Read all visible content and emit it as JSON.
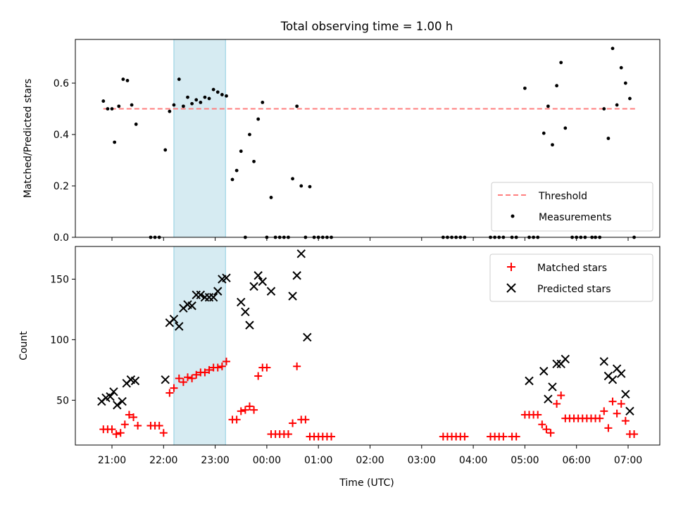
{
  "chart_data": [
    {
      "type": "scatter",
      "title": "Total observing time = 1.00 h",
      "xlabel": "",
      "ylabel": "Matched/Predicted stars",
      "x_ticks": [
        "21:00",
        "22:00",
        "23:00",
        "00:00",
        "01:00",
        "02:00",
        "03:00",
        "04:00",
        "05:00",
        "06:00",
        "07:00"
      ],
      "ylim": [
        0,
        0.77
      ],
      "yticks": [
        0.0,
        0.2,
        0.4,
        0.6
      ],
      "ytick_labels": [
        "0.0",
        "0.2",
        "0.4",
        "0.6"
      ],
      "highlight_span": [
        "22:12",
        "23:12"
      ],
      "legend_position": "lower right",
      "threshold": {
        "name": "Threshold",
        "value": 0.5,
        "color": "#ff7f7f",
        "from": "20:50",
        "to": "07:10"
      },
      "series": [
        {
          "name": "Measurements",
          "color": "#000000",
          "marker": "dot",
          "points": [
            [
              "20:50",
              0.53
            ],
            [
              "20:55",
              0.5
            ],
            [
              "21:00",
              0.5
            ],
            [
              "21:03",
              0.37
            ],
            [
              "21:08",
              0.51
            ],
            [
              "21:13",
              0.615
            ],
            [
              "21:18",
              0.61
            ],
            [
              "21:23",
              0.515
            ],
            [
              "21:28",
              0.44
            ],
            [
              "21:45",
              0.0
            ],
            [
              "21:50",
              0.0
            ],
            [
              "21:55",
              0.0
            ],
            [
              "22:02",
              0.34
            ],
            [
              "22:07",
              0.49
            ],
            [
              "22:12",
              0.515
            ],
            [
              "22:18",
              0.615
            ],
            [
              "22:23",
              0.51
            ],
            [
              "22:28",
              0.545
            ],
            [
              "22:33",
              0.52
            ],
            [
              "22:38",
              0.535
            ],
            [
              "22:43",
              0.525
            ],
            [
              "22:48",
              0.545
            ],
            [
              "22:53",
              0.54
            ],
            [
              "22:58",
              0.575
            ],
            [
              "23:03",
              0.565
            ],
            [
              "23:08",
              0.555
            ],
            [
              "23:13",
              0.55
            ],
            [
              "23:20",
              0.225
            ],
            [
              "23:25",
              0.26
            ],
            [
              "23:30",
              0.335
            ],
            [
              "23:35",
              0.0
            ],
            [
              "23:40",
              0.4
            ],
            [
              "23:45",
              0.295
            ],
            [
              "23:50",
              0.46
            ],
            [
              "23:55",
              0.525
            ],
            [
              "00:00",
              0.0
            ],
            [
              "00:05",
              0.155
            ],
            [
              "00:10",
              0.0
            ],
            [
              "00:15",
              0.0
            ],
            [
              "00:20",
              0.0
            ],
            [
              "00:25",
              0.0
            ],
            [
              "00:30",
              0.228
            ],
            [
              "00:35",
              0.51
            ],
            [
              "00:40",
              0.2
            ],
            [
              "00:45",
              0.0
            ],
            [
              "00:50",
              0.197
            ],
            [
              "00:55",
              0.0
            ],
            [
              "01:00",
              0.0
            ],
            [
              "01:05",
              0.0
            ],
            [
              "01:10",
              0.0
            ],
            [
              "01:15",
              0.0
            ],
            [
              "03:25",
              0.0
            ],
            [
              "03:30",
              0.0
            ],
            [
              "03:35",
              0.0
            ],
            [
              "03:40",
              0.0
            ],
            [
              "03:45",
              0.0
            ],
            [
              "03:50",
              0.0
            ],
            [
              "04:20",
              0.0
            ],
            [
              "04:25",
              0.0
            ],
            [
              "04:30",
              0.0
            ],
            [
              "04:35",
              0.0
            ],
            [
              "04:45",
              0.0
            ],
            [
              "04:50",
              0.0
            ],
            [
              "05:00",
              0.58
            ],
            [
              "05:05",
              0.0
            ],
            [
              "05:10",
              0.0
            ],
            [
              "05:15",
              0.0
            ],
            [
              "05:22",
              0.405
            ],
            [
              "05:27",
              0.51
            ],
            [
              "05:32",
              0.36
            ],
            [
              "05:37",
              0.59
            ],
            [
              "05:42",
              0.68
            ],
            [
              "05:47",
              0.425
            ],
            [
              "05:55",
              0.0
            ],
            [
              "06:00",
              0.0
            ],
            [
              "06:05",
              0.0
            ],
            [
              "06:10",
              0.0
            ],
            [
              "06:18",
              0.0
            ],
            [
              "06:22",
              0.0
            ],
            [
              "06:27",
              0.0
            ],
            [
              "06:32",
              0.5
            ],
            [
              "06:37",
              0.385
            ],
            [
              "06:42",
              0.735
            ],
            [
              "06:47",
              0.515
            ],
            [
              "06:52",
              0.66
            ],
            [
              "06:57",
              0.6
            ],
            [
              "07:02",
              0.54
            ],
            [
              "07:07",
              0.0
            ]
          ]
        }
      ]
    },
    {
      "type": "scatter",
      "title": "",
      "xlabel": "Time (UTC)",
      "ylabel": "Count",
      "x_ticks": [
        "21:00",
        "22:00",
        "23:00",
        "00:00",
        "01:00",
        "02:00",
        "03:00",
        "04:00",
        "05:00",
        "06:00",
        "07:00"
      ],
      "ylim": [
        13,
        177
      ],
      "yticks": [
        50,
        100,
        150
      ],
      "ytick_labels": [
        "50",
        "100",
        "150"
      ],
      "highlight_span": [
        "22:12",
        "23:12"
      ],
      "legend_position": "upper right",
      "series": [
        {
          "name": "Matched stars",
          "color": "#ff0000",
          "marker": "plus",
          "points": [
            [
              "20:50",
              26
            ],
            [
              "20:55",
              26
            ],
            [
              "21:00",
              26
            ],
            [
              "21:05",
              22
            ],
            [
              "21:10",
              23
            ],
            [
              "21:15",
              30
            ],
            [
              "21:20",
              38
            ],
            [
              "21:25",
              36
            ],
            [
              "21:30",
              29
            ],
            [
              "21:45",
              29
            ],
            [
              "21:50",
              29
            ],
            [
              "21:55",
              29
            ],
            [
              "22:00",
              23
            ],
            [
              "22:07",
              56
            ],
            [
              "22:12",
              60
            ],
            [
              "22:18",
              68
            ],
            [
              "22:23",
              65
            ],
            [
              "22:28",
              69
            ],
            [
              "22:33",
              68
            ],
            [
              "22:38",
              71
            ],
            [
              "22:43",
              73
            ],
            [
              "22:48",
              73
            ],
            [
              "22:53",
              75
            ],
            [
              "22:58",
              77
            ],
            [
              "23:03",
              77
            ],
            [
              "23:08",
              78
            ],
            [
              "23:13",
              82
            ],
            [
              "23:20",
              34
            ],
            [
              "23:25",
              34
            ],
            [
              "23:30",
              41
            ],
            [
              "23:35",
              42
            ],
            [
              "23:40",
              45
            ],
            [
              "23:45",
              42
            ],
            [
              "23:50",
              70
            ],
            [
              "23:55",
              77
            ],
            [
              "00:00",
              77
            ],
            [
              "00:05",
              22
            ],
            [
              "00:10",
              22
            ],
            [
              "00:15",
              22
            ],
            [
              "00:20",
              22
            ],
            [
              "00:25",
              22
            ],
            [
              "00:30",
              31
            ],
            [
              "00:35",
              78
            ],
            [
              "00:40",
              34
            ],
            [
              "00:45",
              34
            ],
            [
              "00:50",
              20
            ],
            [
              "00:55",
              20
            ],
            [
              "01:00",
              20
            ],
            [
              "01:05",
              20
            ],
            [
              "01:10",
              20
            ],
            [
              "01:15",
              20
            ],
            [
              "03:25",
              20
            ],
            [
              "03:30",
              20
            ],
            [
              "03:35",
              20
            ],
            [
              "03:40",
              20
            ],
            [
              "03:45",
              20
            ],
            [
              "03:50",
              20
            ],
            [
              "04:20",
              20
            ],
            [
              "04:25",
              20
            ],
            [
              "04:30",
              20
            ],
            [
              "04:35",
              20
            ],
            [
              "04:45",
              20
            ],
            [
              "04:50",
              20
            ],
            [
              "05:00",
              38
            ],
            [
              "05:05",
              38
            ],
            [
              "05:10",
              38
            ],
            [
              "05:15",
              38
            ],
            [
              "05:20",
              30
            ],
            [
              "05:25",
              26
            ],
            [
              "05:30",
              23
            ],
            [
              "05:37",
              47
            ],
            [
              "05:42",
              54
            ],
            [
              "05:47",
              35
            ],
            [
              "05:52",
              35
            ],
            [
              "05:57",
              35
            ],
            [
              "06:02",
              35
            ],
            [
              "06:07",
              35
            ],
            [
              "06:12",
              35
            ],
            [
              "06:17",
              35
            ],
            [
              "06:22",
              35
            ],
            [
              "06:27",
              35
            ],
            [
              "06:32",
              41
            ],
            [
              "06:37",
              27
            ],
            [
              "06:42",
              49
            ],
            [
              "06:47",
              39
            ],
            [
              "06:52",
              47
            ],
            [
              "06:57",
              33
            ],
            [
              "07:02",
              22
            ],
            [
              "07:07",
              22
            ]
          ]
        },
        {
          "name": "Predicted stars",
          "color": "#000000",
          "marker": "x",
          "points": [
            [
              "20:48",
              49
            ],
            [
              "20:53",
              52
            ],
            [
              "20:58",
              53
            ],
            [
              "21:02",
              57
            ],
            [
              "21:06",
              46
            ],
            [
              "21:12",
              49
            ],
            [
              "21:17",
              64
            ],
            [
              "21:22",
              67
            ],
            [
              "21:27",
              66
            ],
            [
              "22:02",
              67
            ],
            [
              "22:07",
              114
            ],
            [
              "22:12",
              117
            ],
            [
              "22:18",
              111
            ],
            [
              "22:23",
              126
            ],
            [
              "22:28",
              129
            ],
            [
              "22:33",
              128
            ],
            [
              "22:38",
              137
            ],
            [
              "22:43",
              137
            ],
            [
              "22:48",
              135
            ],
            [
              "22:53",
              135
            ],
            [
              "22:58",
              135
            ],
            [
              "23:03",
              140
            ],
            [
              "23:08",
              150
            ],
            [
              "23:13",
              151
            ],
            [
              "23:30",
              131
            ],
            [
              "23:35",
              123
            ],
            [
              "23:40",
              112
            ],
            [
              "23:45",
              144
            ],
            [
              "23:50",
              153
            ],
            [
              "23:55",
              148
            ],
            [
              "00:05",
              140
            ],
            [
              "00:30",
              136
            ],
            [
              "00:35",
              153
            ],
            [
              "00:40",
              171
            ],
            [
              "00:47",
              102
            ],
            [
              "05:05",
              66
            ],
            [
              "05:22",
              74
            ],
            [
              "05:27",
              51
            ],
            [
              "05:32",
              61
            ],
            [
              "05:37",
              80
            ],
            [
              "05:42",
              80
            ],
            [
              "05:47",
              84
            ],
            [
              "06:32",
              82
            ],
            [
              "06:37",
              70
            ],
            [
              "06:42",
              67
            ],
            [
              "06:47",
              76
            ],
            [
              "06:52",
              72
            ],
            [
              "06:57",
              55
            ],
            [
              "07:02",
              41
            ]
          ]
        }
      ]
    }
  ]
}
